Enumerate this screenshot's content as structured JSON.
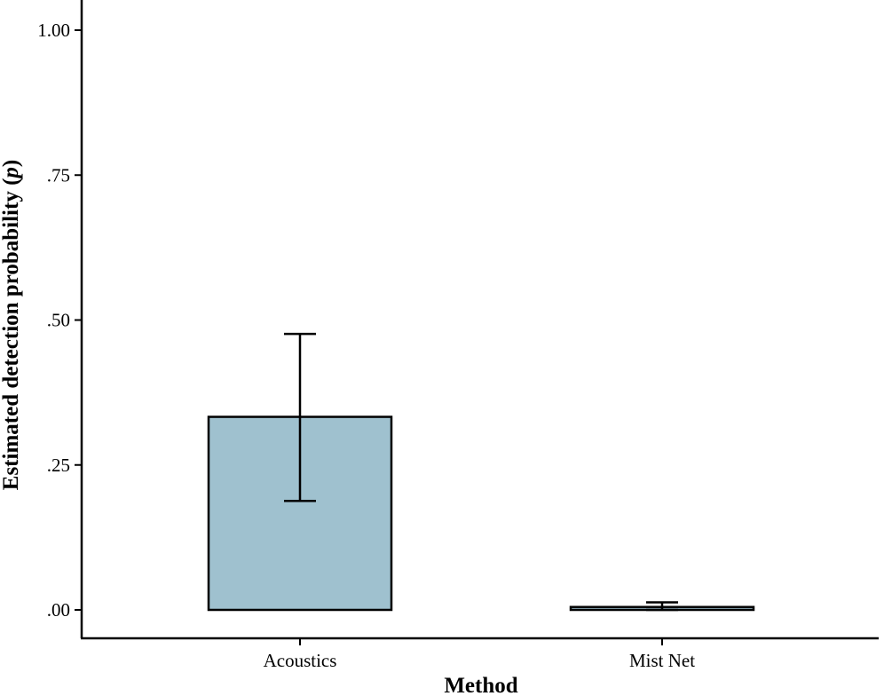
{
  "chart_data": {
    "type": "bar",
    "title": "",
    "xlabel": "Method",
    "ylabel": "Estimated detection probability (p)",
    "ylabel_parts": [
      "Estimated detection probability (",
      "p",
      ")"
    ],
    "categories": [
      "Acoustics",
      "Mist Net"
    ],
    "values": [
      0.333,
      0.005
    ],
    "error_bars": [
      {
        "lower": 0.188,
        "upper": 0.476
      },
      {
        "lower": 0.0,
        "upper": 0.013
      }
    ],
    "ylim": [
      0,
      1.05
    ],
    "yticks": [
      0,
      0.25,
      0.5,
      0.75,
      1.0
    ],
    "ytick_labels": [
      ".00",
      ".25",
      ".50",
      ".75",
      "1.00"
    ],
    "bar_color": "#9fc1cf",
    "grid": false,
    "legend": "none"
  }
}
